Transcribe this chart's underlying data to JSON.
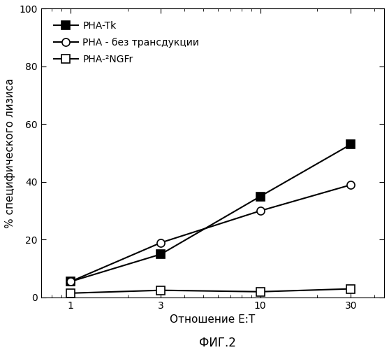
{
  "x_values": [
    1,
    3,
    10,
    30
  ],
  "series": [
    {
      "label": "PHA-Tk",
      "y": [
        5.5,
        15,
        35,
        53
      ],
      "marker": "s",
      "marker_face": "black",
      "marker_edge": "black",
      "marker_size": 8,
      "line_color": "black",
      "line_width": 1.5
    },
    {
      "label": "PHA - без трансдукции",
      "y": [
        5.5,
        19,
        30,
        39
      ],
      "marker": "o",
      "marker_face": "white",
      "marker_edge": "black",
      "marker_size": 8,
      "line_color": "black",
      "line_width": 1.5
    },
    {
      "label": "PHA-²NGFr",
      "y": [
        1.5,
        2.5,
        2,
        3
      ],
      "marker": "s",
      "marker_face": "white",
      "marker_edge": "black",
      "marker_size": 8,
      "line_color": "black",
      "line_width": 1.5
    }
  ],
  "xlabel": "Отношение E:T",
  "ylabel": "% специфического лизиса",
  "title": "ФИГ.2",
  "xlim": [
    0.7,
    45
  ],
  "ylim": [
    0,
    100
  ],
  "yticks": [
    0,
    20,
    40,
    60,
    80,
    100
  ],
  "xticks": [
    1,
    3,
    10,
    30
  ],
  "legend_fontsize": 10,
  "axis_label_fontsize": 11,
  "tick_fontsize": 10,
  "title_fontsize": 12,
  "background_color": "#ffffff"
}
